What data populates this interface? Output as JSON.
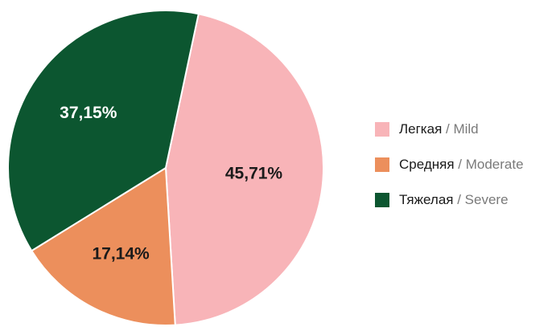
{
  "chart_data": {
    "type": "pie",
    "slices": [
      {
        "label_ru": "Легкая",
        "label_en": "Mild",
        "value": 45.71,
        "value_label": "45,71%",
        "color": "#f8b4b8",
        "text_color": "#1a1a1a"
      },
      {
        "label_ru": "Средняя",
        "label_en": "Moderate",
        "value": 17.14,
        "value_label": "17,14%",
        "color": "#ec8f5c",
        "text_color": "#1a1a1a"
      },
      {
        "label_ru": "Тяжелая",
        "label_en": "Severe",
        "value": 37.15,
        "value_label": "37,15%",
        "color": "#0c5630",
        "text_color": "#ffffff"
      }
    ],
    "start_angle_deg": 12,
    "direction": "clockwise",
    "legend_position": "right"
  },
  "legend": {
    "separator": " / ",
    "items": [
      {
        "ru": "Легкая",
        "en": "Mild",
        "color": "#f8b4b8"
      },
      {
        "ru": "Средняя",
        "en": "Moderate",
        "color": "#ec8f5c"
      },
      {
        "ru": "Тяжелая",
        "en": "Severe",
        "color": "#0c5630"
      }
    ]
  }
}
